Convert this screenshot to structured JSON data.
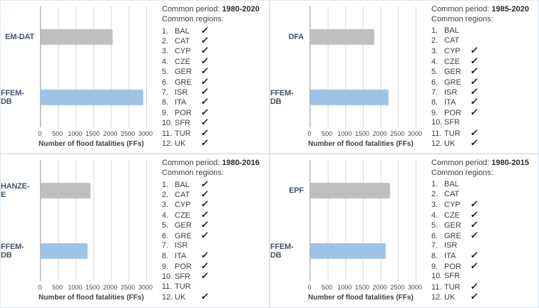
{
  "checkmark": "✓",
  "colors": {
    "bar_gray": "#BFBFBF",
    "bar_blue": "#9DC3E6",
    "gridline": "#D9D9D9",
    "panel_border": "#DDE5F0",
    "category_label": "#44546A",
    "text": "#3F3F3F"
  },
  "chart_data": [
    {
      "type": "bar",
      "orientation": "horizontal",
      "categories": [
        "EM-DAT",
        "FFEM-DB"
      ],
      "values": [
        2030,
        2900
      ],
      "bar_colors": [
        "#BFBFBF",
        "#9DC3E6"
      ],
      "xlabel": "Number of flood fatalities (FFs)",
      "xlim": [
        0,
        3000
      ],
      "xticks": [
        "0",
        "500",
        "1000",
        "1500",
        "2000",
        "2500",
        "3000"
      ],
      "grid": true,
      "annotations": {
        "period_label": "Common period:",
        "period": "1980-2020",
        "regions_label": "Common regions:",
        "regions": [
          {
            "num": "1.",
            "code": "BAL",
            "checked": true
          },
          {
            "num": "2.",
            "code": "CAT",
            "checked": true
          },
          {
            "num": "3.",
            "code": "CYP",
            "checked": true
          },
          {
            "num": "4.",
            "code": "CZE",
            "checked": true
          },
          {
            "num": "5.",
            "code": "GER",
            "checked": true
          },
          {
            "num": "6.",
            "code": "GRE",
            "checked": true
          },
          {
            "num": "7.",
            "code": "ISR",
            "checked": true
          },
          {
            "num": "8.",
            "code": "ITA",
            "checked": true
          },
          {
            "num": "9.",
            "code": "POR",
            "checked": true
          },
          {
            "num": "10.",
            "code": "SFR",
            "checked": true
          },
          {
            "num": "11.",
            "code": "TUR",
            "checked": true
          },
          {
            "num": "12.",
            "code": "UK",
            "checked": true
          }
        ]
      }
    },
    {
      "type": "bar",
      "orientation": "horizontal",
      "categories": [
        "DFA",
        "FFEM-DB"
      ],
      "values": [
        1800,
        2200
      ],
      "bar_colors": [
        "#BFBFBF",
        "#9DC3E6"
      ],
      "xlabel": "Number of flood fatalities (FFs)",
      "xlim": [
        0,
        3000
      ],
      "xticks": [
        "0",
        "500",
        "1000",
        "1500",
        "2000",
        "2500",
        "3000"
      ],
      "grid": true,
      "annotations": {
        "period_label": "Common period:",
        "period": "1985-2020",
        "regions_label": "Common regions:",
        "regions": [
          {
            "num": "1.",
            "code": "BAL",
            "checked": false
          },
          {
            "num": "2.",
            "code": "CAT",
            "checked": false
          },
          {
            "num": "3.",
            "code": "CYP",
            "checked": true
          },
          {
            "num": "4.",
            "code": "CZE",
            "checked": true
          },
          {
            "num": "5.",
            "code": "GER",
            "checked": true
          },
          {
            "num": "6.",
            "code": "GRE",
            "checked": true
          },
          {
            "num": "7.",
            "code": "ISR",
            "checked": true
          },
          {
            "num": "8.",
            "code": "ITA",
            "checked": true
          },
          {
            "num": "9.",
            "code": "POR",
            "checked": true
          },
          {
            "num": "10.",
            "code": "SFR",
            "checked": false
          },
          {
            "num": "11.",
            "code": "TUR",
            "checked": true
          },
          {
            "num": "12.",
            "code": "UK",
            "checked": true
          }
        ]
      }
    },
    {
      "type": "bar",
      "orientation": "horizontal",
      "categories": [
        "HANZE-E",
        "FFEM-DB"
      ],
      "values": [
        1400,
        1320
      ],
      "bar_colors": [
        "#BFBFBF",
        "#9DC3E6"
      ],
      "xlabel": "Number of flood fatalities (FFs)",
      "xlim": [
        0,
        3000
      ],
      "xticks": [
        "0",
        "500",
        "1000",
        "1500",
        "2000",
        "2500",
        "3000"
      ],
      "grid": true,
      "annotations": {
        "period_label": "Common period:",
        "period": "1980-2016",
        "regions_label": "Common regions:",
        "regions": [
          {
            "num": "1.",
            "code": "BAL",
            "checked": true
          },
          {
            "num": "2.",
            "code": "CAT",
            "checked": true
          },
          {
            "num": "3.",
            "code": "CYP",
            "checked": true
          },
          {
            "num": "4.",
            "code": "CZE",
            "checked": true
          },
          {
            "num": "5.",
            "code": "GER",
            "checked": true
          },
          {
            "num": "6.",
            "code": "GRE",
            "checked": true
          },
          {
            "num": "7.",
            "code": "ISR",
            "checked": false
          },
          {
            "num": "8.",
            "code": "ITA",
            "checked": true
          },
          {
            "num": "9.",
            "code": "POR",
            "checked": true
          },
          {
            "num": "10.",
            "code": "SFR",
            "checked": true
          },
          {
            "num": "11.",
            "code": "TUR",
            "checked": false
          },
          {
            "num": "12.",
            "code": "UK",
            "checked": true
          }
        ]
      }
    },
    {
      "type": "bar",
      "orientation": "horizontal",
      "categories": [
        "EPF",
        "FFEM-DB"
      ],
      "values": [
        2240,
        2120
      ],
      "bar_colors": [
        "#BFBFBF",
        "#9DC3E6"
      ],
      "xlabel": "Number of flood fatalities (FFs)",
      "xlim": [
        0,
        3000
      ],
      "xticks": [
        "0",
        "500",
        "1000",
        "1500",
        "2000",
        "2500",
        "3000"
      ],
      "grid": true,
      "annotations": {
        "period_label": "Common period:",
        "period": "1980-2015",
        "regions_label": "Common regions:",
        "regions": [
          {
            "num": "1.",
            "code": "BAL",
            "checked": false
          },
          {
            "num": "2.",
            "code": "CAT",
            "checked": false
          },
          {
            "num": "3.",
            "code": "CYP",
            "checked": true
          },
          {
            "num": "4.",
            "code": "CZE",
            "checked": true
          },
          {
            "num": "5.",
            "code": "GER",
            "checked": true
          },
          {
            "num": "6.",
            "code": "GRE",
            "checked": true
          },
          {
            "num": "7.",
            "code": "ISR",
            "checked": false
          },
          {
            "num": "8.",
            "code": "ITA",
            "checked": true
          },
          {
            "num": "9.",
            "code": "POR",
            "checked": true
          },
          {
            "num": "10.",
            "code": "SFR",
            "checked": false
          },
          {
            "num": "11.",
            "code": "TUR",
            "checked": true
          },
          {
            "num": "12.",
            "code": "UK",
            "checked": true
          }
        ]
      }
    }
  ]
}
